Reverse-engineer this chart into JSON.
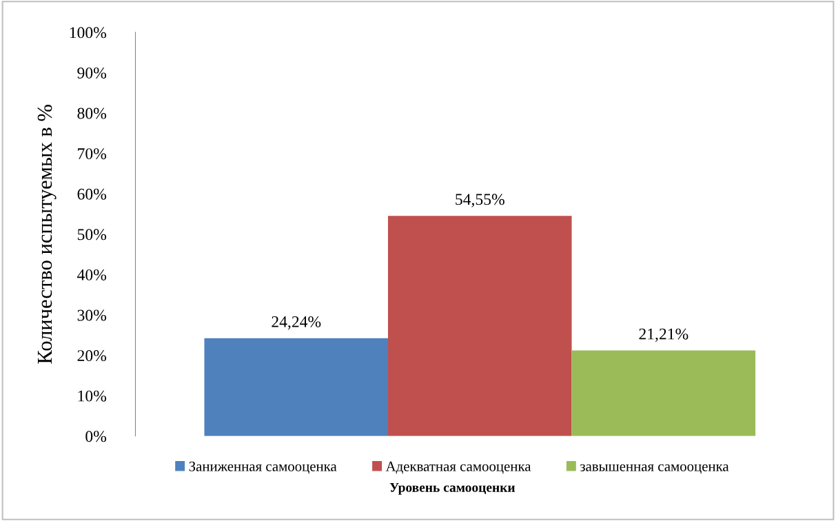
{
  "chart_data": {
    "type": "bar",
    "categories": [
      null
    ],
    "series": [
      {
        "name": "Заниженная самооценка",
        "color": "#4f81bd",
        "values": [
          24.24
        ],
        "value_labels": [
          "24,24%"
        ]
      },
      {
        "name": "Адекватная самооценка",
        "color": "#c0504d",
        "values": [
          54.55
        ],
        "value_labels": [
          "54,55%"
        ]
      },
      {
        "name": "завышенная самооценка",
        "color": "#9bbb59",
        "values": [
          21.21
        ],
        "value_labels": [
          "21,21%"
        ]
      }
    ],
    "ylim": [
      0,
      100
    ],
    "yticks": [
      {
        "value": 0,
        "label": "0%"
      },
      {
        "value": 10,
        "label": "10%"
      },
      {
        "value": 20,
        "label": "20%"
      },
      {
        "value": 30,
        "label": "30%"
      },
      {
        "value": 40,
        "label": "40%"
      },
      {
        "value": 50,
        "label": "50%"
      },
      {
        "value": 60,
        "label": "60%"
      },
      {
        "value": 70,
        "label": "70%"
      },
      {
        "value": 80,
        "label": "80%"
      },
      {
        "value": 90,
        "label": "90%"
      },
      {
        "value": 100,
        "label": "100%"
      }
    ],
    "ylabel": "Количество испытуемых в %",
    "xlabel": "Уровень самооценки",
    "legend": "bottom",
    "grid": false
  }
}
